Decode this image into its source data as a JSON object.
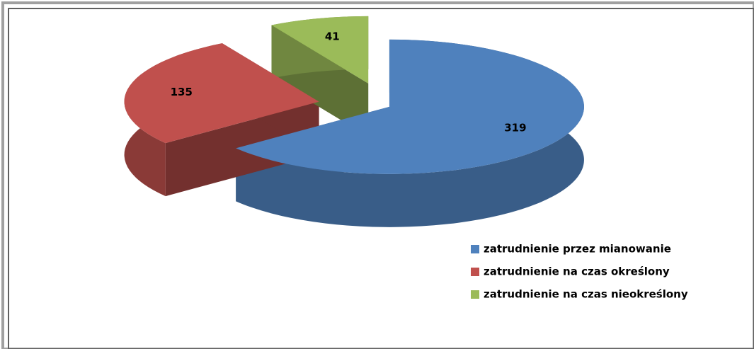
{
  "chart_data": {
    "type": "pie",
    "categories": [
      "zatrudnienie przez mianowanie",
      "zatrudnienie na czas określony",
      "zatrudnienie na czas nieokreślony"
    ],
    "values": [
      319,
      135,
      41
    ],
    "colors": [
      "#4f81bd",
      "#c0504d",
      "#9bbb59"
    ],
    "legend": "right"
  }
}
